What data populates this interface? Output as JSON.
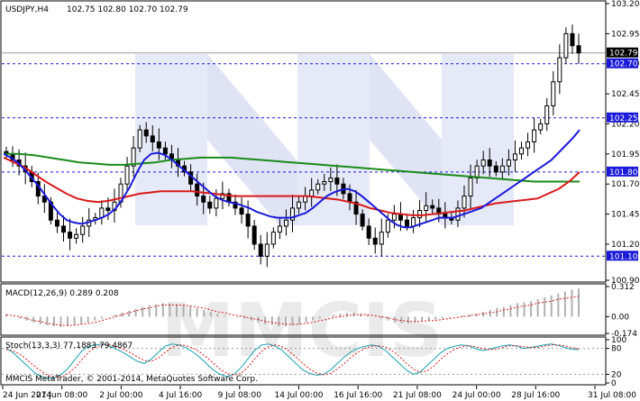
{
  "title": {
    "symbol_tf": "USDJPY,H4",
    "ohlc": "102.75 102.80 102.70 102.79"
  },
  "watermark": "MMCIS",
  "copyright": "MMCIS MetaTrader, © 2001-2014, MetaQuotes Software Corp.",
  "colors": {
    "candle": "#000000",
    "ma_fast": "#1a1ad8",
    "ma_mid": "#d81a1a",
    "ma_slow": "#1a8a1a",
    "level_line": "#1a1ad8",
    "level_label_bg": "#1a1ad8",
    "current_label_bg": "#000000",
    "macd_hist": "#b0b0b0",
    "macd_signal": "#d81a1a",
    "stoch_main": "#1aa0b0",
    "stoch_signal": "#d81a1a"
  },
  "chart_data": [
    {
      "type": "candlestick",
      "symbol": "USDJPY",
      "timeframe": "H4",
      "ohlc_last": {
        "open": 102.75,
        "high": 102.8,
        "low": 102.7,
        "close": 102.79
      },
      "y_ticks": [
        "103.20",
        "102.95",
        "102.70",
        "102.45",
        "102.20",
        "101.95",
        "101.70",
        "101.45",
        "101.20",
        "100.90"
      ],
      "ylim": [
        100.9,
        103.2
      ],
      "x_ticks": [
        "24 Jun 2014",
        "27 Jun 08:00",
        "2 Jul 00:00",
        "4 Jul 16:00",
        "9 Jul 08:00",
        "14 Jul 00:00",
        "16 Jul 16:00",
        "21 Jul 08:00",
        "24 Jul 00:00",
        "28 Jul 16:00",
        "31 Jul 08:00"
      ],
      "horizontal_levels": [
        {
          "value": 102.7,
          "label": "102.70"
        },
        {
          "value": 102.25,
          "label": "102.25"
        },
        {
          "value": 101.8,
          "label": "101.80"
        },
        {
          "value": 101.1,
          "label": "101.10"
        }
      ],
      "current_price": {
        "value": 102.79,
        "label": "102.79"
      },
      "close_series": [
        101.95,
        101.9,
        101.85,
        101.8,
        101.72,
        101.6,
        101.55,
        101.4,
        101.35,
        101.3,
        101.25,
        101.28,
        101.35,
        101.4,
        101.42,
        101.5,
        101.48,
        101.55,
        101.7,
        101.85,
        102.0,
        102.15,
        102.1,
        102.05,
        102.0,
        101.95,
        101.9,
        101.85,
        101.8,
        101.7,
        101.6,
        101.55,
        101.5,
        101.58,
        101.62,
        101.55,
        101.5,
        101.45,
        101.35,
        101.2,
        101.1,
        101.2,
        101.3,
        101.35,
        101.4,
        101.5,
        101.55,
        101.6,
        101.65,
        101.7,
        101.72,
        101.75,
        101.7,
        101.62,
        101.55,
        101.45,
        101.35,
        101.25,
        101.2,
        101.3,
        101.4,
        101.45,
        101.4,
        101.35,
        101.42,
        101.48,
        101.52,
        101.5,
        101.45,
        101.42,
        101.4,
        101.5,
        101.6,
        101.75,
        101.85,
        101.9,
        101.85,
        101.8,
        101.85,
        101.9,
        101.95,
        102.0,
        102.05,
        102.15,
        102.2,
        102.35,
        102.55,
        102.75,
        102.95,
        102.85,
        102.79
      ],
      "ma_fast": [
        101.95,
        101.92,
        101.88,
        101.82,
        101.75,
        101.68,
        101.6,
        101.52,
        101.45,
        101.4,
        101.38,
        101.37,
        101.38,
        101.4,
        101.42,
        101.45,
        101.5,
        101.58,
        101.68,
        101.8,
        101.9,
        101.95,
        101.96,
        101.94,
        101.9,
        101.85,
        101.8,
        101.75,
        101.7,
        101.65,
        101.6,
        101.57,
        101.55,
        101.54,
        101.52,
        101.5,
        101.47,
        101.45,
        101.43,
        101.42,
        101.42,
        101.42,
        101.44,
        101.46,
        101.5,
        101.55,
        101.6,
        101.63,
        101.65,
        101.66,
        101.64,
        101.6,
        101.55,
        101.5,
        101.45,
        101.4,
        101.36,
        101.34,
        101.34,
        101.36,
        101.38,
        101.4,
        101.42,
        101.42,
        101.42,
        101.44,
        101.46,
        101.48,
        101.5,
        101.54,
        101.58,
        101.62,
        101.66,
        101.7,
        101.74,
        101.78,
        101.82,
        101.86,
        101.9,
        101.96,
        102.02,
        102.08,
        102.15
      ],
      "ma_mid": [
        101.92,
        101.88,
        101.84,
        101.78,
        101.72,
        101.67,
        101.62,
        101.58,
        101.56,
        101.55,
        101.56,
        101.58,
        101.6,
        101.62,
        101.63,
        101.64,
        101.64,
        101.64,
        101.64,
        101.63,
        101.62,
        101.61,
        101.6,
        101.6,
        101.6,
        101.6,
        101.6,
        101.6,
        101.6,
        101.6,
        101.59,
        101.58,
        101.57,
        101.55,
        101.53,
        101.5,
        101.48,
        101.46,
        101.45,
        101.44,
        101.44,
        101.45,
        101.46,
        101.47,
        101.48,
        101.5,
        101.52,
        101.54,
        101.55,
        101.56,
        101.57,
        101.58,
        101.62,
        101.66,
        101.72,
        101.8
      ],
      "ma_slow": [
        101.95,
        101.95,
        101.94,
        101.92,
        101.9,
        101.88,
        101.87,
        101.86,
        101.86,
        101.87,
        101.88,
        101.9,
        101.91,
        101.92,
        101.92,
        101.92,
        101.91,
        101.9,
        101.89,
        101.88,
        101.87,
        101.86,
        101.85,
        101.84,
        101.83,
        101.82,
        101.81,
        101.8,
        101.79,
        101.78,
        101.77,
        101.76,
        101.75,
        101.74,
        101.73,
        101.72,
        101.72,
        101.72,
        101.72
      ]
    },
    {
      "type": "macd",
      "label": "MACD(12,26,9) 0.289 0.208",
      "y_ticks": [
        "0.312",
        "0.00",
        "-0.174"
      ],
      "ylim": [
        -0.174,
        0.312
      ],
      "histogram": [
        0.02,
        0.0,
        -0.02,
        -0.04,
        -0.06,
        -0.08,
        -0.09,
        -0.1,
        -0.11,
        -0.1,
        -0.09,
        -0.08,
        -0.06,
        -0.04,
        -0.02,
        0.0,
        0.02,
        0.04,
        0.06,
        0.08,
        0.1,
        0.12,
        0.13,
        0.14,
        0.14,
        0.13,
        0.12,
        0.11,
        0.09,
        0.07,
        0.05,
        0.03,
        0.01,
        0.0,
        -0.01,
        -0.02,
        -0.04,
        -0.06,
        -0.08,
        -0.09,
        -0.1,
        -0.1,
        -0.09,
        -0.08,
        -0.06,
        -0.04,
        -0.02,
        0.0,
        0.02,
        0.03,
        0.04,
        0.04,
        0.03,
        0.02,
        0.0,
        -0.02,
        -0.04,
        -0.06,
        -0.07,
        -0.07,
        -0.06,
        -0.05,
        -0.04,
        -0.03,
        -0.02,
        -0.01,
        0.0,
        0.01,
        0.02,
        0.03,
        0.05,
        0.07,
        0.09,
        0.1,
        0.12,
        0.14,
        0.15,
        0.16,
        0.18,
        0.2,
        0.22,
        0.24,
        0.26,
        0.28,
        0.29
      ],
      "signal": [
        0.02,
        0.01,
        0.0,
        -0.02,
        -0.04,
        -0.05,
        -0.07,
        -0.08,
        -0.09,
        -0.09,
        -0.09,
        -0.08,
        -0.07,
        -0.06,
        -0.04,
        -0.02,
        0.0,
        0.02,
        0.04,
        0.06,
        0.08,
        0.09,
        0.11,
        0.12,
        0.12,
        0.12,
        0.12,
        0.11,
        0.1,
        0.09,
        0.07,
        0.05,
        0.04,
        0.02,
        0.01,
        0.0,
        -0.02,
        -0.03,
        -0.05,
        -0.06,
        -0.07,
        -0.08,
        -0.08,
        -0.08,
        -0.07,
        -0.06,
        -0.04,
        -0.03,
        -0.01,
        0.0,
        0.01,
        0.02,
        0.02,
        0.02,
        0.01,
        0.0,
        -0.01,
        -0.03,
        -0.04,
        -0.05,
        -0.05,
        -0.05,
        -0.04,
        -0.04,
        -0.03,
        -0.02,
        -0.01,
        0.0,
        0.01,
        0.02,
        0.03,
        0.04,
        0.05,
        0.07,
        0.08,
        0.1,
        0.11,
        0.12,
        0.14,
        0.15,
        0.16,
        0.18,
        0.19,
        0.2,
        0.21
      ]
    },
    {
      "type": "stochastic",
      "label": "Stoch(13,3,3) 77.1883 79.4867",
      "y_ticks": [
        "100",
        "80",
        "20",
        "0"
      ],
      "ylim": [
        0,
        100
      ],
      "levels": [
        80,
        20
      ],
      "main": [
        80,
        70,
        55,
        40,
        25,
        15,
        10,
        12,
        20,
        35,
        55,
        75,
        85,
        88,
        90,
        85,
        78,
        70,
        60,
        50,
        45,
        55,
        70,
        85,
        90,
        88,
        82,
        72,
        60,
        45,
        30,
        20,
        15,
        20,
        35,
        55,
        75,
        88,
        90,
        85,
        75,
        60,
        45,
        30,
        22,
        18,
        20,
        30,
        45,
        60,
        72,
        80,
        85,
        88,
        85,
        75,
        60,
        45,
        30,
        20,
        25,
        40,
        55,
        70,
        80,
        85,
        88,
        86,
        80,
        75,
        78,
        82,
        86,
        88,
        85,
        80,
        82,
        85,
        88,
        90,
        87,
        82,
        78,
        77
      ],
      "signal": [
        78,
        74,
        66,
        54,
        40,
        28,
        18,
        14,
        14,
        22,
        36,
        55,
        72,
        83,
        88,
        88,
        84,
        78,
        70,
        60,
        52,
        50,
        57,
        70,
        82,
        88,
        87,
        81,
        72,
        60,
        46,
        32,
        22,
        18,
        22,
        36,
        55,
        73,
        84,
        88,
        84,
        74,
        60,
        45,
        32,
        23,
        19,
        22,
        32,
        45,
        59,
        71,
        80,
        85,
        86,
        83,
        74,
        61,
        46,
        32,
        25,
        28,
        39,
        55,
        68,
        78,
        84,
        86,
        84,
        80,
        77,
        78,
        82,
        86,
        86,
        84,
        82,
        82,
        85,
        88,
        88,
        86,
        82,
        79
      ]
    }
  ]
}
